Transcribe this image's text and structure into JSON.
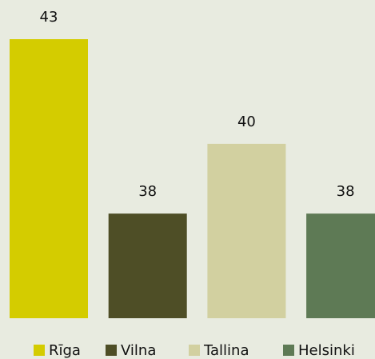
{
  "chart_data": {
    "type": "bar",
    "categories": [
      "Rīga",
      "Vilna",
      "Tallina",
      "Helsinki"
    ],
    "values": [
      43,
      38,
      40,
      38
    ],
    "colors": [
      "#d4cc00",
      "#4e4e26",
      "#d2d0a0",
      "#5e7a55"
    ],
    "ylim": [
      35,
      43
    ],
    "legend": "bottom"
  }
}
